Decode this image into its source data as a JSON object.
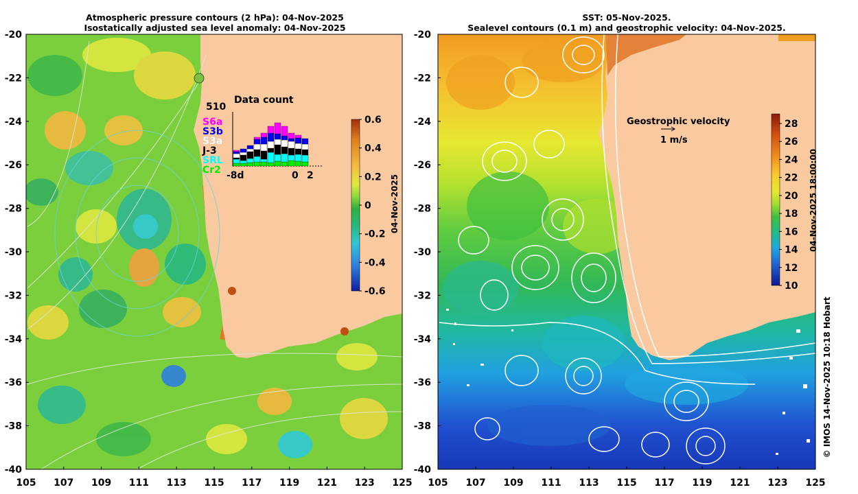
{
  "left_panel": {
    "title_line1": "Atmospheric pressure contours (2 hPa): 04-Nov-2025",
    "title_line2": "Isostatically adjusted sea level anomaly: 04-Nov-2025",
    "colorbar": {
      "ticks": [
        "0.6",
        "0.4",
        "0.2",
        "0",
        "-0.2",
        "-0.4",
        "-0.6"
      ],
      "label": "04-Nov-2025",
      "colors": [
        "#a0300a",
        "#e08020",
        "#f5c040",
        "#dfe840",
        "#8dd840",
        "#30b040",
        "#28b880",
        "#30c8d8",
        "#3080e0",
        "#1020a0"
      ]
    },
    "data_count": {
      "title": "Data count",
      "max_label": "510",
      "x_left": "-8d",
      "x_mid": "0",
      "x_right": "2",
      "missions": [
        {
          "name": "S6a",
          "color": "#ff00ff"
        },
        {
          "name": "S3b",
          "color": "#0000ee"
        },
        {
          "name": "S3a",
          "color": "#ffffff"
        },
        {
          "name": "J-3",
          "color": "#000000"
        },
        {
          "name": "SRL",
          "color": "#00ffff"
        },
        {
          "name": "Cr2",
          "color": "#00ee00"
        }
      ]
    }
  },
  "right_panel": {
    "title_line1": "SST: 05-Nov-2025.",
    "title_line2": "Sealevel contours (0.1 m) and geostrophic velocity: 04-Nov-2025.",
    "colorbar": {
      "ticks": [
        "28",
        "26",
        "24",
        "22",
        "20",
        "18",
        "16",
        "14",
        "12",
        "10"
      ],
      "label": "04-Nov-2025 18:00:00",
      "colors": [
        "#8a1a0a",
        "#d05010",
        "#f09020",
        "#f8c830",
        "#e8e830",
        "#a8e030",
        "#40c040",
        "#20b890",
        "#20a8e0",
        "#2060d0",
        "#101890"
      ]
    },
    "legend": {
      "title": "Geostrophic velocity",
      "scale": "1 m/s"
    }
  },
  "axes": {
    "lat_ticks": [
      "-20",
      "-22",
      "-24",
      "-26",
      "-28",
      "-30",
      "-32",
      "-34",
      "-36",
      "-38",
      "-40"
    ],
    "lon_ticks": [
      "105",
      "107",
      "109",
      "111",
      "113",
      "115",
      "117",
      "119",
      "121",
      "123",
      "125"
    ]
  },
  "credit": "© IMOS 14-Nov-2025 10:18 Hobart",
  "colors": {
    "land": "#f9c9a0",
    "ocean_base": "#7ccf3c"
  }
}
